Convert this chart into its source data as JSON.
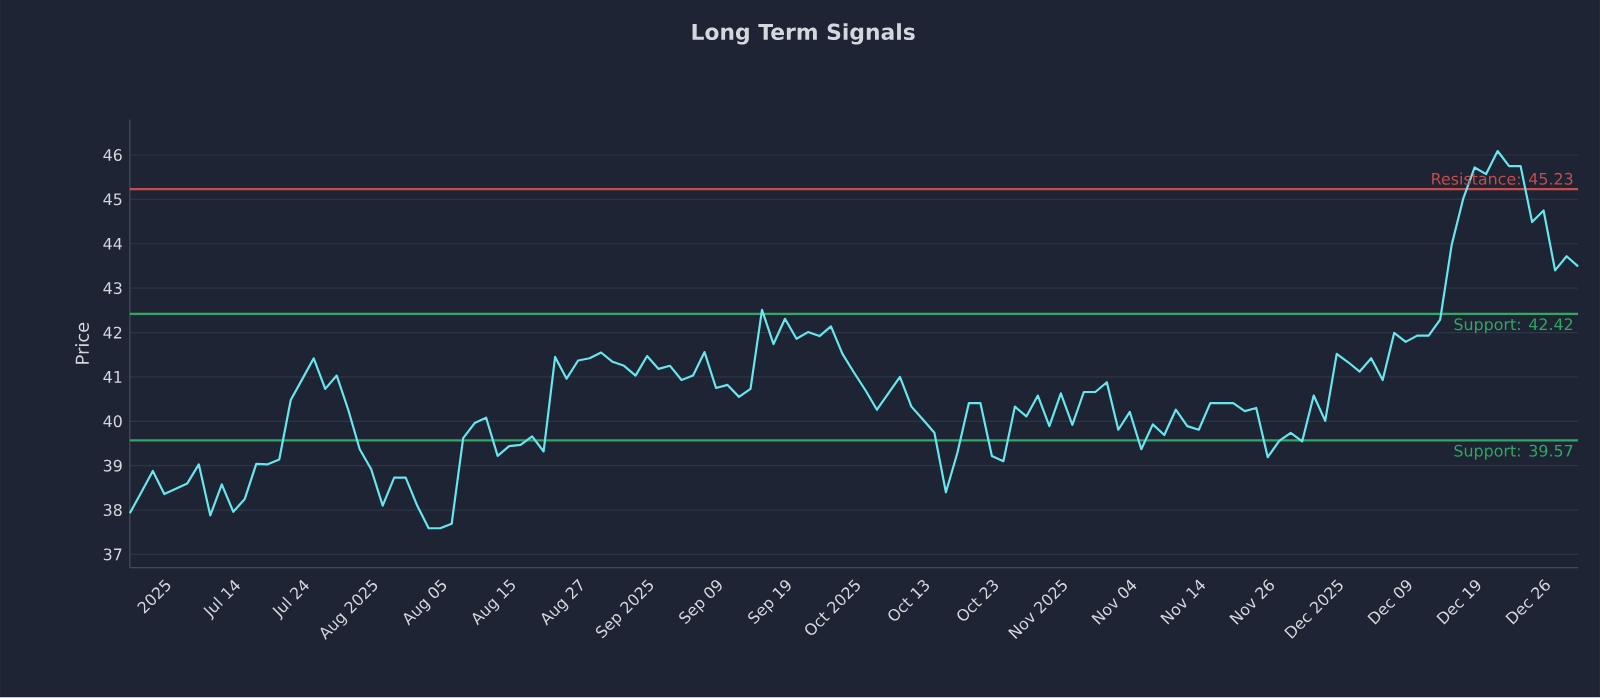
{
  "chart_data": {
    "type": "line",
    "title": "Long Term Signals",
    "ylabel": "Price",
    "categories": [
      null,
      null,
      null,
      "2025",
      null,
      null,
      null,
      null,
      null,
      "Jul 14",
      null,
      null,
      null,
      null,
      null,
      "Jul 24",
      null,
      null,
      null,
      null,
      null,
      "Aug 2025",
      null,
      null,
      null,
      null,
      null,
      "Aug 05",
      null,
      null,
      null,
      null,
      null,
      "Aug 15",
      null,
      null,
      null,
      null,
      null,
      "Aug 27",
      null,
      null,
      null,
      null,
      null,
      "Sep 2025",
      null,
      null,
      null,
      null,
      null,
      "Sep 09",
      null,
      null,
      null,
      null,
      null,
      "Sep 19",
      null,
      null,
      null,
      null,
      null,
      "Oct 2025",
      null,
      null,
      null,
      null,
      null,
      "Oct 13",
      null,
      null,
      null,
      null,
      null,
      "Oct 23",
      null,
      null,
      null,
      null,
      null,
      "Nov 2025",
      null,
      null,
      null,
      null,
      null,
      "Nov 04",
      null,
      null,
      null,
      null,
      null,
      "Nov 14",
      null,
      null,
      null,
      null,
      null,
      "Nov 26",
      null,
      null,
      null,
      null,
      null,
      "Dec 2025",
      null,
      null,
      null,
      null,
      null,
      "Dec 09",
      null,
      null,
      null,
      null,
      null,
      "Dec 19",
      null,
      null,
      null,
      null,
      null,
      "Dec 26",
      null,
      null,
      null
    ],
    "series": [
      {
        "color": "#67e6ef",
        "values": [
          37.93,
          38.4,
          38.88,
          38.36,
          38.48,
          38.6,
          39.03,
          37.88,
          38.58,
          37.96,
          38.25,
          39.04,
          39.03,
          39.14,
          40.48,
          40.95,
          41.42,
          40.73,
          41.03,
          40.26,
          39.37,
          38.92,
          38.1,
          38.73,
          38.73,
          38.1,
          37.59,
          37.59,
          37.69,
          39.62,
          39.96,
          40.08,
          39.22,
          39.44,
          39.47,
          39.66,
          39.32,
          41.45,
          40.96,
          41.37,
          41.42,
          41.55,
          41.34,
          41.25,
          41.03,
          41.47,
          41.18,
          41.25,
          40.93,
          41.03,
          41.56,
          40.75,
          40.82,
          40.55,
          40.73,
          42.51,
          41.74,
          42.31,
          41.86,
          42.01,
          41.92,
          42.14,
          41.52,
          41.1,
          40.7,
          40.26,
          40.63,
          41.0,
          40.33,
          40.04,
          39.74,
          38.4,
          39.29,
          40.41,
          40.41,
          39.22,
          39.1,
          40.33,
          40.11,
          40.58,
          39.89,
          40.63,
          39.92,
          40.66,
          40.66,
          40.88,
          39.81,
          40.21,
          39.37,
          39.93,
          39.69,
          40.26,
          39.89,
          39.81,
          40.41,
          40.41,
          40.41,
          40.23,
          40.3,
          39.19,
          39.56,
          39.74,
          39.55,
          40.58,
          40.01,
          41.52,
          41.33,
          41.12,
          41.42,
          40.93,
          41.99,
          41.79,
          41.93,
          41.93,
          42.29,
          43.97,
          45.01,
          45.72,
          45.57,
          46.09,
          45.75,
          45.75,
          44.49,
          44.75,
          43.4,
          43.72,
          43.49
        ]
      }
    ],
    "ylim": [
      36.7,
      46.8
    ],
    "yticks": [
      37,
      38,
      39,
      40,
      41,
      42,
      43,
      44,
      45,
      46
    ],
    "grid": "y",
    "marker": "none",
    "line_style": "solid",
    "ref_lines": [
      {
        "axis": "y",
        "value": 45.23,
        "label": "Resistance: 45.23",
        "color": "#c44d4d"
      },
      {
        "axis": "y",
        "value": 42.42,
        "label": "Support: 42.42",
        "color": "#2fa863"
      },
      {
        "axis": "y",
        "value": 39.57,
        "label": "Support: 39.57",
        "color": "#2fa863"
      }
    ]
  }
}
